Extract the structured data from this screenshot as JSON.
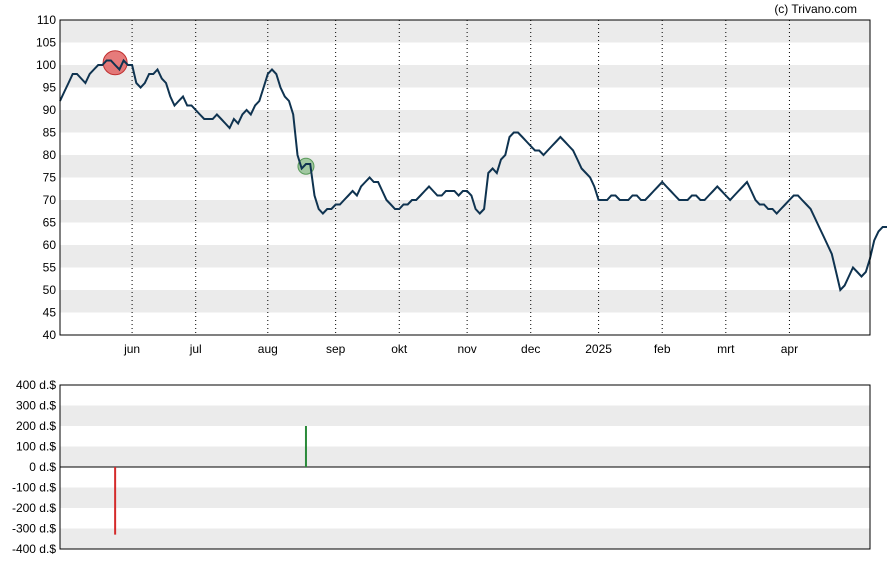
{
  "credit": "(c) Trivano.com",
  "colors": {
    "band": "#ebebeb",
    "price_line": "#0f3350",
    "sell_marker": "#e05a5a",
    "buy_marker": "#8fbf8f",
    "sell_bar": "#d42a2a",
    "buy_bar": "#2a8a3a",
    "axis": "#000000"
  },
  "chart_data": [
    {
      "type": "line",
      "name": "price-chart",
      "ylim": [
        40,
        110
      ],
      "y_ticks": [
        "40",
        "45",
        "50",
        "55",
        "60",
        "65",
        "70",
        "75",
        "80",
        "85",
        "90",
        "95",
        "100",
        "105",
        "110"
      ],
      "grid": "horizontal bands and dotted monthly verticals",
      "x_tick_labels": [
        "jun",
        "jul",
        "aug",
        "sep",
        "okt",
        "nov",
        "dec",
        "2025",
        "feb",
        "mrt",
        "apr"
      ],
      "x_tick_index": [
        17,
        32,
        49,
        65,
        80,
        96,
        111,
        127,
        142,
        157,
        172
      ],
      "n_points": 192,
      "series": [
        {
          "values": [
            92,
            94,
            96,
            98,
            98,
            97,
            96,
            98,
            99,
            100,
            100,
            101,
            101,
            100,
            99,
            101,
            100,
            100,
            96,
            95,
            96,
            98,
            98,
            99,
            97,
            96,
            93,
            91,
            92,
            93,
            91,
            91,
            90,
            89,
            88,
            88,
            88,
            89,
            88,
            87,
            86,
            88,
            87,
            89,
            90,
            89,
            91,
            92,
            95,
            98,
            99,
            98,
            95,
            93,
            92,
            89,
            80,
            77,
            78,
            78,
            71,
            68,
            67,
            68,
            68,
            69,
            69,
            70,
            71,
            72,
            71,
            73,
            74,
            75,
            74,
            74,
            72,
            70,
            69,
            68,
            68,
            69,
            69,
            70,
            70,
            71,
            72,
            73,
            72,
            71,
            71,
            72,
            72,
            72,
            71,
            72,
            72,
            71,
            68,
            67,
            68,
            76,
            77,
            76,
            79,
            80,
            84,
            85,
            85,
            84,
            83,
            82,
            81,
            81,
            80,
            81,
            82,
            83,
            84,
            83,
            82,
            81,
            79,
            77,
            76,
            75,
            73,
            70,
            70,
            70,
            71,
            71,
            70,
            70,
            70,
            71,
            71,
            70,
            70,
            71,
            72,
            73,
            74,
            73,
            72,
            71,
            70,
            70,
            70,
            71,
            71,
            70,
            70,
            71,
            72,
            73,
            72,
            71,
            70,
            71,
            72,
            73,
            74,
            72,
            70,
            69,
            69,
            68,
            68,
            67,
            68,
            69,
            70,
            71,
            71,
            70,
            69,
            68,
            66,
            64,
            62,
            60,
            58,
            54,
            50,
            51,
            53,
            55,
            54,
            53,
            54,
            57,
            61,
            63,
            64,
            64
          ],
          "values_note_removed": ""
        }
      ],
      "markers": [
        {
          "kind": "sell",
          "index": 13,
          "value": 100.5
        },
        {
          "kind": "buy",
          "index": 58,
          "value": 77.5
        }
      ]
    },
    {
      "type": "bar",
      "name": "transactions-chart",
      "ylim": [
        -400,
        400
      ],
      "y_ticks": [
        "400 d.$",
        "300 d.$",
        "200 d.$",
        "100 d.$",
        "0 d.$",
        "-100 d.$",
        "-200 d.$",
        "-300 d.$",
        "-400 d.$"
      ],
      "y_tick_values": [
        400,
        300,
        200,
        100,
        0,
        -100,
        -200,
        -300,
        -400
      ],
      "bars": [
        {
          "kind": "sell",
          "index": 13,
          "value": -330
        },
        {
          "kind": "buy",
          "index": 58,
          "value": 200
        }
      ]
    }
  ]
}
